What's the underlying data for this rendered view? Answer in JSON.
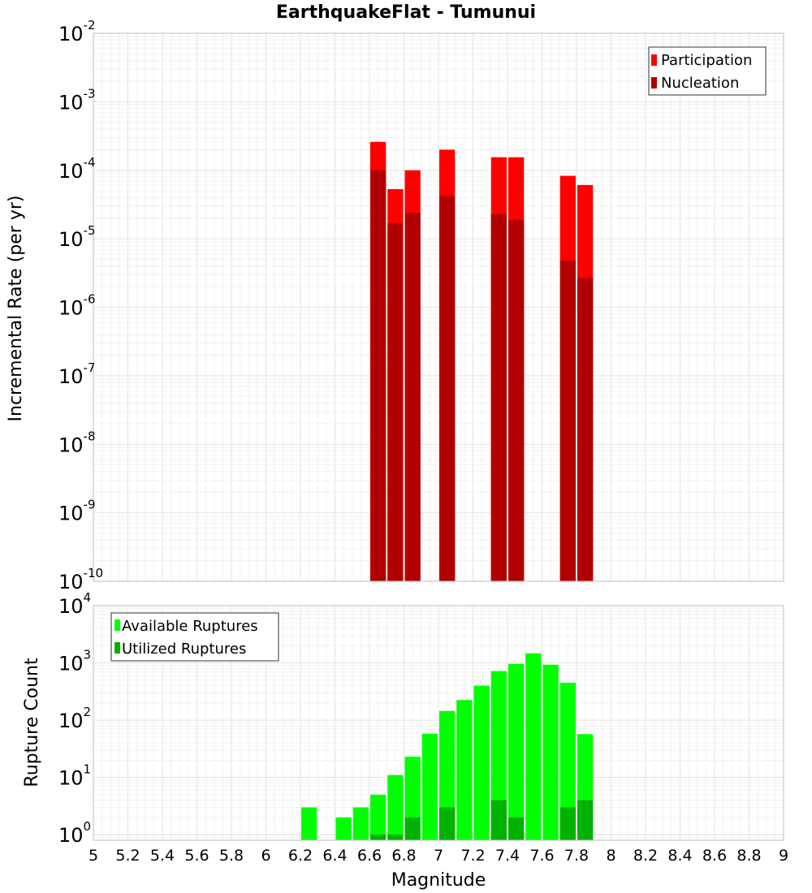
{
  "title": "EarthquakeFlat - Tumunui",
  "chart_data": [
    {
      "type": "bar",
      "ylabel": "Incremental Rate (per yr)",
      "yscale": "log",
      "ylim": [
        1e-10,
        0.01
      ],
      "xlim": [
        5,
        9
      ],
      "grid": true,
      "legend_position": "top-right",
      "legend": [
        "Participation",
        "Nucleation"
      ],
      "colors": {
        "participation": "#ff0000",
        "nucleation": "#b20000"
      },
      "bar_width": 0.1,
      "x": [
        6.65,
        6.75,
        6.85,
        7.05,
        7.35,
        7.45,
        7.75,
        7.85
      ],
      "series": [
        {
          "name": "Participation",
          "values": [
            0.00026,
            5.3e-05,
            0.0001,
            0.0002,
            0.000155,
            0.000155,
            8.3e-05,
            6.1e-05
          ]
        },
        {
          "name": "Nucleation",
          "values": [
            0.0001,
            1.7e-05,
            2.4e-05,
            4.2e-05,
            2.3e-05,
            1.9e-05,
            4.8e-06,
            2.7e-06
          ]
        }
      ],
      "ytick_labels": [
        {
          "base": "10",
          "exp": "-10",
          "value": 1e-10
        },
        {
          "base": "10",
          "exp": "-9",
          "value": 1e-09
        },
        {
          "base": "10",
          "exp": "-8",
          "value": 1e-08
        },
        {
          "base": "10",
          "exp": "-7",
          "value": 1e-07
        },
        {
          "base": "10",
          "exp": "-6",
          "value": 1e-06
        },
        {
          "base": "10",
          "exp": "-5",
          "value": 1e-05
        },
        {
          "base": "10",
          "exp": "-4",
          "value": 0.0001
        },
        {
          "base": "10",
          "exp": "-3",
          "value": 0.001
        },
        {
          "base": "10",
          "exp": "-2",
          "value": 0.01
        }
      ]
    },
    {
      "type": "bar",
      "ylabel": "Rupture Count",
      "xlabel": "Magnitude",
      "yscale": "log",
      "ylim": [
        0.8,
        10000
      ],
      "xlim": [
        5,
        9
      ],
      "grid": true,
      "legend_position": "top-left",
      "legend": [
        "Available Ruptures",
        "Utilized Ruptures"
      ],
      "colors": {
        "available": "#00ff00",
        "utilized": "#00b200"
      },
      "bar_width": 0.1,
      "x": [
        6.25,
        6.45,
        6.55,
        6.65,
        6.75,
        6.85,
        6.95,
        7.05,
        7.15,
        7.25,
        7.35,
        7.45,
        7.55,
        7.65,
        7.75,
        7.85
      ],
      "series": [
        {
          "name": "Available Ruptures",
          "values": [
            3,
            2,
            3,
            5,
            11,
            23,
            58,
            145,
            225,
            400,
            720,
            960,
            1470,
            930,
            450,
            57
          ]
        },
        {
          "name": "Utilized Ruptures",
          "values": [
            0,
            0,
            0,
            1,
            1,
            2,
            0,
            3,
            0,
            0,
            4,
            2,
            0,
            0,
            3,
            4
          ]
        }
      ],
      "ytick_labels": [
        {
          "base": "10",
          "exp": "0",
          "value": 1
        },
        {
          "base": "10",
          "exp": "1",
          "value": 10
        },
        {
          "base": "10",
          "exp": "2",
          "value": 100
        },
        {
          "base": "10",
          "exp": "3",
          "value": 1000
        },
        {
          "base": "10",
          "exp": "4",
          "value": 10000
        }
      ],
      "xtick_labels": [
        "5",
        "5.2",
        "5.4",
        "5.6",
        "5.8",
        "6",
        "6.2",
        "6.4",
        "6.6",
        "6.8",
        "7",
        "7.2",
        "7.4",
        "7.6",
        "7.8",
        "8",
        "8.2",
        "8.4",
        "8.6",
        "8.8",
        "9"
      ],
      "xtick_values": [
        5,
        5.2,
        5.4,
        5.6,
        5.8,
        6,
        6.2,
        6.4,
        6.6,
        6.8,
        7,
        7.2,
        7.4,
        7.6,
        7.8,
        8,
        8.2,
        8.4,
        8.6,
        8.8,
        9
      ]
    }
  ]
}
